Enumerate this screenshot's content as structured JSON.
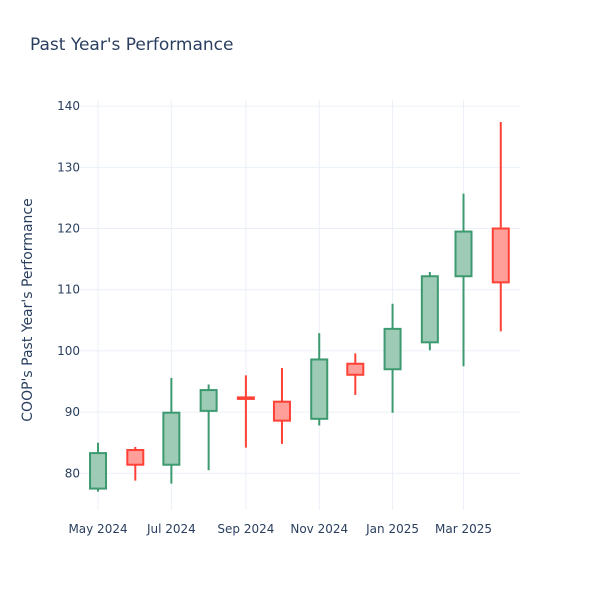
{
  "chart_data": {
    "type": "candlestick",
    "title": "Past Year's Performance",
    "xlabel": "",
    "ylabel": "COOP's Past Year's Performance",
    "ylim": [
      74,
      141
    ],
    "yticks": [
      80,
      90,
      100,
      110,
      120,
      130,
      140
    ],
    "xticks": [
      {
        "label": "May 2024",
        "date": "2024-05-01"
      },
      {
        "label": "Jul 2024",
        "date": "2024-07-01"
      },
      {
        "label": "Sep 2024",
        "date": "2024-09-01"
      },
      {
        "label": "Nov 2024",
        "date": "2024-11-01"
      },
      {
        "label": "Jan 2025",
        "date": "2025-01-01"
      },
      {
        "label": "Mar 2025",
        "date": "2025-03-01"
      }
    ],
    "grid": true,
    "colors": {
      "increasing_line": "#3d9970",
      "increasing_fill": "#9ecbb5",
      "decreasing_line": "#ff4136",
      "decreasing_fill": "#ff9f9a",
      "text": "#2a3f5f",
      "grid": "#ebf0f8"
    },
    "candles": [
      {
        "date": "2024-05-01",
        "open": 77.5,
        "high": 85.0,
        "low": 77.0,
        "close": 83.3
      },
      {
        "date": "2024-06-01",
        "open": 83.8,
        "high": 84.3,
        "low": 78.8,
        "close": 81.4
      },
      {
        "date": "2024-07-01",
        "open": 81.4,
        "high": 95.6,
        "low": 78.3,
        "close": 89.9
      },
      {
        "date": "2024-08-01",
        "open": 90.2,
        "high": 94.5,
        "low": 80.5,
        "close": 93.6
      },
      {
        "date": "2024-09-01",
        "open": 92.4,
        "high": 96.0,
        "low": 84.2,
        "close": 92.2
      },
      {
        "date": "2024-10-01",
        "open": 91.7,
        "high": 97.2,
        "low": 84.8,
        "close": 88.6
      },
      {
        "date": "2024-11-01",
        "open": 88.9,
        "high": 102.9,
        "low": 87.8,
        "close": 98.6
      },
      {
        "date": "2024-12-01",
        "open": 97.9,
        "high": 99.6,
        "low": 92.8,
        "close": 96.1
      },
      {
        "date": "2025-01-01",
        "open": 97.0,
        "high": 107.7,
        "low": 89.9,
        "close": 103.6
      },
      {
        "date": "2025-02-01",
        "open": 101.4,
        "high": 112.9,
        "low": 100.1,
        "close": 112.2
      },
      {
        "date": "2025-03-01",
        "open": 112.2,
        "high": 125.7,
        "low": 97.5,
        "close": 119.5
      },
      {
        "date": "2025-04-01",
        "open": 120.0,
        "high": 137.4,
        "low": 103.2,
        "close": 111.2
      }
    ]
  }
}
